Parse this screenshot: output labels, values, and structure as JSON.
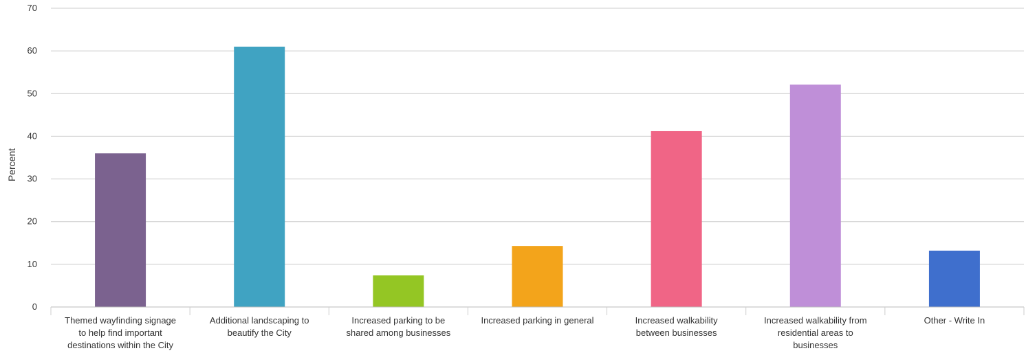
{
  "chart_data": {
    "type": "bar",
    "ylabel": "Percent",
    "xlabel": "",
    "title": "",
    "ylim": [
      0,
      70
    ],
    "yticks": [
      0,
      10,
      20,
      30,
      40,
      50,
      60,
      70
    ],
    "grid": true,
    "legend": "none",
    "categories": [
      [
        "Themed wayfinding signage",
        "to help find important",
        "destinations within the City"
      ],
      [
        "Additional landscaping to",
        "beautify the City"
      ],
      [
        "Increased parking to be",
        "shared among businesses"
      ],
      [
        "Increased parking in general"
      ],
      [
        "Increased walkability",
        "between businesses"
      ],
      [
        "Increased walkability from",
        "residential areas to",
        "businesses"
      ],
      [
        "Other - Write In"
      ]
    ],
    "values": [
      36,
      61,
      7.4,
      14.3,
      41.2,
      52.1,
      13.2
    ],
    "colors": [
      "#7b628f",
      "#40a3c2",
      "#94c624",
      "#f3a41b",
      "#f06586",
      "#bf8fd8",
      "#3f6fcd"
    ]
  }
}
